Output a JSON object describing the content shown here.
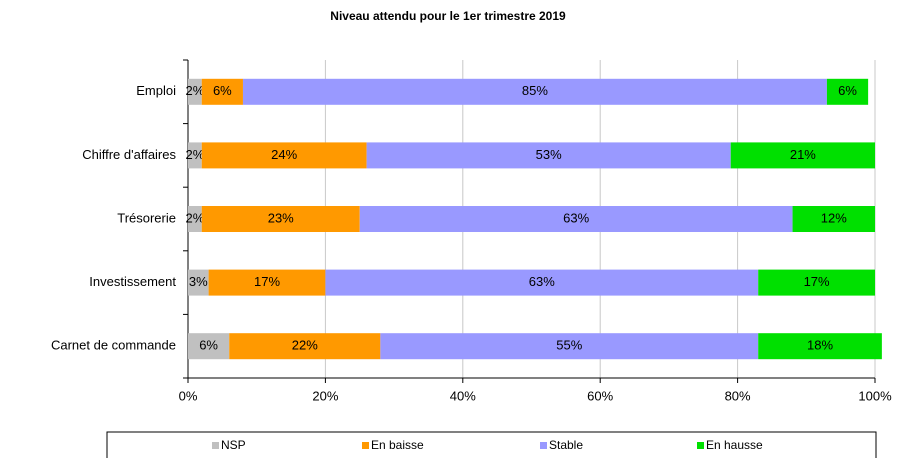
{
  "chart_data": {
    "type": "stacked_barh",
    "title": "Niveau attendu pour le 1er trimestre 2019",
    "categories": [
      "Emploi",
      "Chiffre d'affaires",
      "Trésorerie",
      "Investissement",
      "Carnet de commande"
    ],
    "series": [
      {
        "name": "NSP",
        "color": "#c0c0c0",
        "values": [
          2,
          2,
          2,
          3,
          6
        ],
        "value_labels": [
          "2%",
          "2%",
          "2%",
          "3%",
          "6%"
        ]
      },
      {
        "name": "En baisse",
        "color": "#ff9900",
        "values": [
          6,
          24,
          23,
          17,
          22
        ],
        "value_labels": [
          "6%",
          "24%",
          "23%",
          "17%",
          "22%"
        ]
      },
      {
        "name": "Stable",
        "color": "#9999ff",
        "values": [
          85,
          53,
          63,
          63,
          55
        ],
        "value_labels": [
          "85%",
          "53%",
          "63%",
          "63%",
          "55%"
        ]
      },
      {
        "name": "En hausse",
        "color": "#00e000",
        "values": [
          6,
          21,
          12,
          17,
          18
        ],
        "value_labels": [
          "6%",
          "21%",
          "12%",
          "17%",
          "18%"
        ]
      }
    ],
    "xlim": [
      0,
      100
    ],
    "xticks": [
      {
        "value": 0,
        "label": "0%"
      },
      {
        "value": 20,
        "label": "20%"
      },
      {
        "value": 40,
        "label": "40%"
      },
      {
        "value": 60,
        "label": "60%"
      },
      {
        "value": 80,
        "label": "80%"
      },
      {
        "value": 100,
        "label": "100%"
      }
    ],
    "grid": true,
    "legend": "bottom"
  }
}
